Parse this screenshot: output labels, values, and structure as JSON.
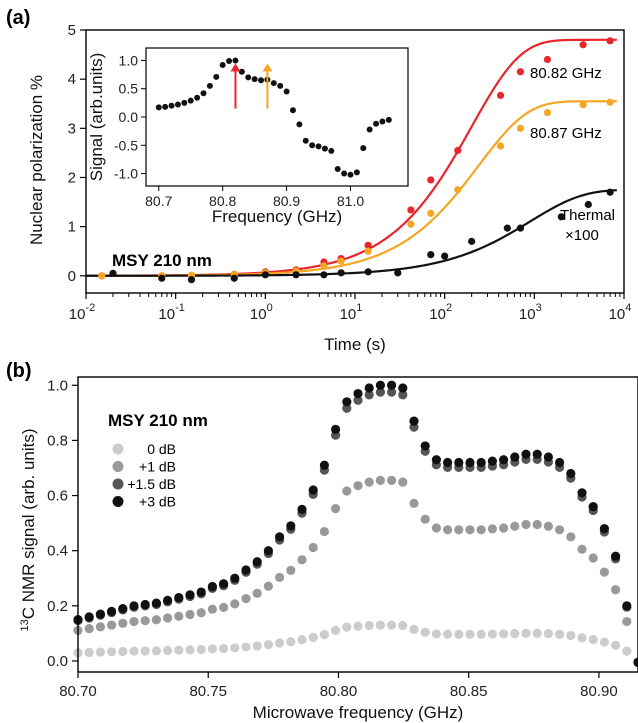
{
  "chart_data": [
    {
      "type": "scatter",
      "panel_label": "(a)",
      "annotation": "MSY 210 nm",
      "xlabel": "Time (s)",
      "ylabel": "Nuclear polarization %",
      "xscale": "log",
      "xlim": [
        0.01,
        10000
      ],
      "ylim": [
        -0.35,
        5.0
      ],
      "x_ticks": [
        0.01,
        0.1,
        1,
        10,
        100,
        1000,
        10000
      ],
      "x_tick_labels": [
        {
          "base": "10",
          "exp": "-2"
        },
        {
          "base": "10",
          "exp": "-1"
        },
        {
          "base": "10",
          "exp": "0"
        },
        {
          "base": "10",
          "exp": "1"
        },
        {
          "base": "10",
          "exp": "2"
        },
        {
          "base": "10",
          "exp": "3"
        },
        {
          "base": "10",
          "exp": "4"
        }
      ],
      "y_ticks": [
        0,
        1,
        2,
        3,
        4,
        5
      ],
      "series": [
        {
          "name": "80.82 GHz",
          "color": "#e8262b",
          "x": [
            0.015,
            0.07,
            0.15,
            0.45,
            1.0,
            2.2,
            4.5,
            7,
            14,
            42,
            70,
            140,
            420,
            700,
            1400,
            3500,
            7000
          ],
          "y": [
            0.0,
            0.0,
            0.01,
            0.03,
            0.08,
            0.12,
            0.28,
            0.35,
            0.62,
            1.34,
            1.95,
            2.55,
            3.67,
            4.15,
            4.4,
            4.7,
            4.78
          ],
          "fit": {
            "A": 4.8,
            "tau": 200,
            "beta": 0.8
          }
        },
        {
          "name": "80.87 GHz",
          "color": "#f5a623",
          "x": [
            0.015,
            0.07,
            0.15,
            0.45,
            1.0,
            2.2,
            4.5,
            7,
            14,
            42,
            70,
            140,
            420,
            700,
            1400,
            3500,
            7000
          ],
          "y": [
            0.0,
            0.0,
            0.01,
            0.03,
            0.06,
            0.1,
            0.2,
            0.3,
            0.5,
            1.05,
            1.27,
            1.75,
            2.64,
            3.0,
            3.32,
            3.48,
            3.53
          ],
          "fit": {
            "A": 3.55,
            "tau": 240,
            "beta": 0.8
          }
        },
        {
          "name": "Thermal ×100",
          "label_lines": [
            "Thermal",
            "×100"
          ],
          "color": "#111111",
          "x": [
            0.02,
            0.07,
            0.15,
            0.45,
            1.0,
            2.2,
            4.5,
            7,
            14,
            30,
            70,
            100,
            200,
            500,
            700,
            2000,
            4000,
            7000
          ],
          "y": [
            0.05,
            -0.05,
            -0.08,
            -0.05,
            0.02,
            0.02,
            0.02,
            0.06,
            0.08,
            0.06,
            0.43,
            0.4,
            0.7,
            0.97,
            0.97,
            1.2,
            1.45,
            1.7
          ],
          "fit": {
            "A": 1.75,
            "tau": 900,
            "beta": 0.75
          }
        }
      ],
      "inset": {
        "type": "scatter",
        "xlabel": "Frequency (GHz)",
        "ylabel": "Signal (arb.units)",
        "xlim": [
          80.68,
          81.09
        ],
        "ylim": [
          -1.22,
          1.22
        ],
        "x_ticks": [
          80.7,
          80.8,
          80.9,
          81.0
        ],
        "x_tick_labels": [
          "80.7",
          "80.8",
          "80.9",
          "81.0"
        ],
        "y_ticks": [
          1.0,
          0.5,
          0.0,
          -0.5,
          -1.0
        ],
        "y_tick_labels": [
          "1.0",
          "0.5",
          "0.0",
          "-0.5",
          "-1.0"
        ],
        "x": [
          80.7,
          80.71,
          80.72,
          80.73,
          80.74,
          80.75,
          80.76,
          80.77,
          80.78,
          80.79,
          80.8,
          80.81,
          80.82,
          80.83,
          80.84,
          80.85,
          80.86,
          80.87,
          80.88,
          80.89,
          80.9,
          80.91,
          80.92,
          80.93,
          80.94,
          80.95,
          80.96,
          80.97,
          80.98,
          80.99,
          81.0,
          81.01,
          81.02,
          81.03,
          81.04,
          81.05,
          81.06
        ],
        "y": [
          0.17,
          0.18,
          0.2,
          0.22,
          0.25,
          0.29,
          0.34,
          0.42,
          0.55,
          0.71,
          0.92,
          0.99,
          1.0,
          0.8,
          0.7,
          0.67,
          0.65,
          0.66,
          0.6,
          0.55,
          0.45,
          0.12,
          -0.13,
          -0.42,
          -0.5,
          -0.52,
          -0.56,
          -0.6,
          -0.92,
          -1.0,
          -1.02,
          -0.98,
          -0.55,
          -0.22,
          -0.12,
          -0.08,
          -0.05
        ],
        "arrows": [
          {
            "x": 80.82,
            "color": "#e8262b"
          },
          {
            "x": 80.87,
            "color": "#f5a623"
          }
        ]
      }
    },
    {
      "type": "scatter",
      "panel_label": "(b)",
      "annotation": "MSY 210 nm",
      "xlabel": "Microwave frequency (GHz)",
      "ylabel_sup": "13",
      "ylabel": "C NMR signal (arb. units)",
      "xlim": [
        80.7,
        80.915
      ],
      "ylim": [
        -0.04,
        1.03
      ],
      "x_ticks": [
        80.7,
        80.75,
        80.8,
        80.85,
        80.9
      ],
      "x_tick_labels": [
        "80.70",
        "80.75",
        "80.80",
        "80.85",
        "80.90"
      ],
      "y_ticks": [
        0.0,
        0.2,
        0.4,
        0.6,
        0.8,
        1.0
      ],
      "y_tick_labels": [
        "0.0",
        "0.2",
        "0.4",
        "0.6",
        "0.8",
        "1.0"
      ],
      "series": [
        {
          "name": "0 dB",
          "color": "#cccccc",
          "scale": 0.118,
          "offset": 0.012
        },
        {
          "name": "+1 dB",
          "color": "#999999",
          "scale": 0.64,
          "offset": 0.015
        },
        {
          "name": "+1.5 dB",
          "color": "#555555",
          "scale": 0.975,
          "offset": 0.0
        },
        {
          "name": "+3 dB",
          "color": "#111111",
          "scale": 1.0,
          "offset": 0.0
        }
      ]
    }
  ]
}
